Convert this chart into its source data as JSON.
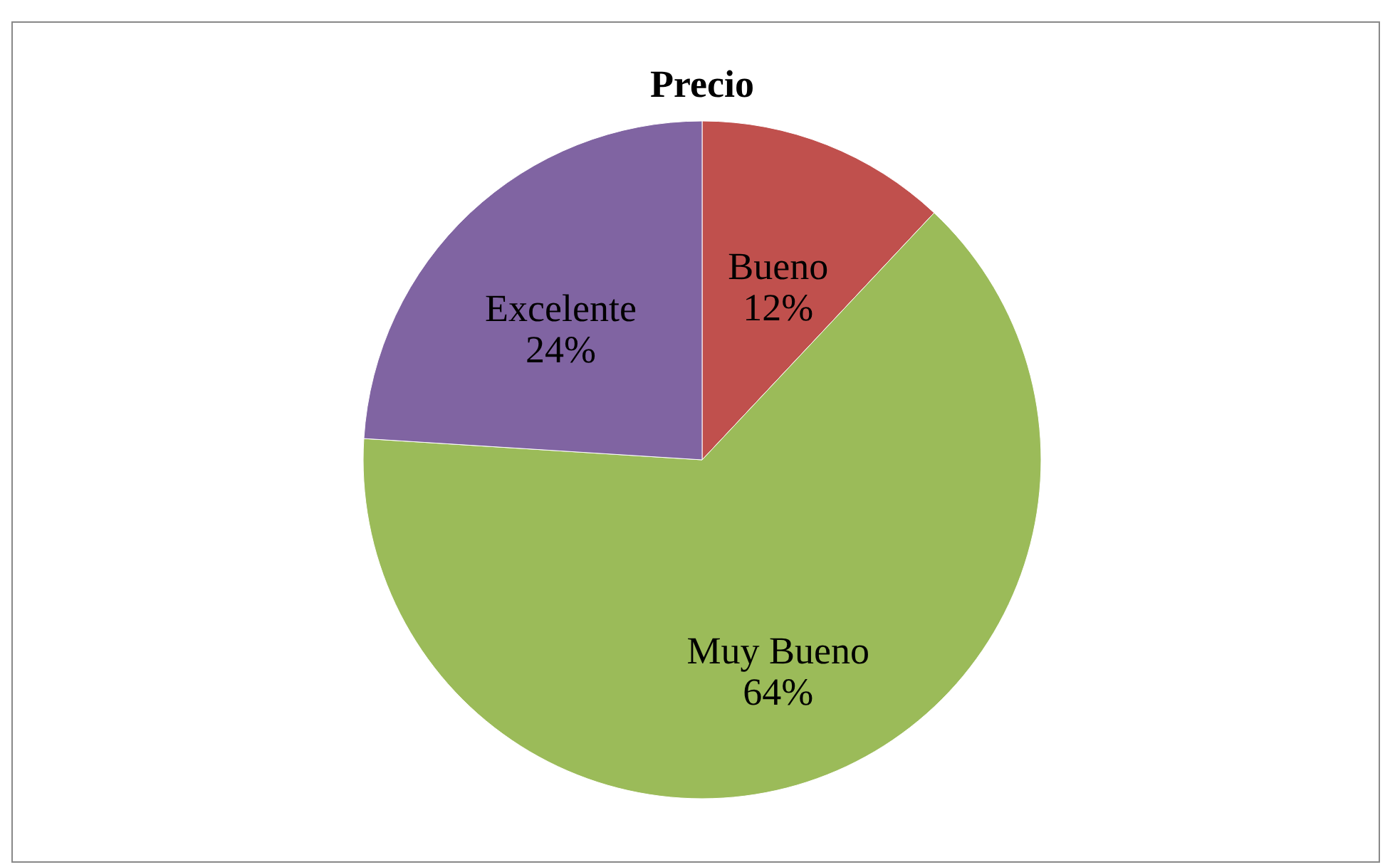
{
  "chart_data": {
    "type": "pie",
    "title": "Precio",
    "categories": [
      "Bueno",
      "Muy Bueno",
      "Excelente"
    ],
    "values": [
      12,
      64,
      24
    ],
    "colors": [
      "#c0504d",
      "#9bbb59",
      "#8064a2"
    ],
    "value_labels": [
      "12%",
      "64%",
      "24%"
    ],
    "legend": false
  }
}
